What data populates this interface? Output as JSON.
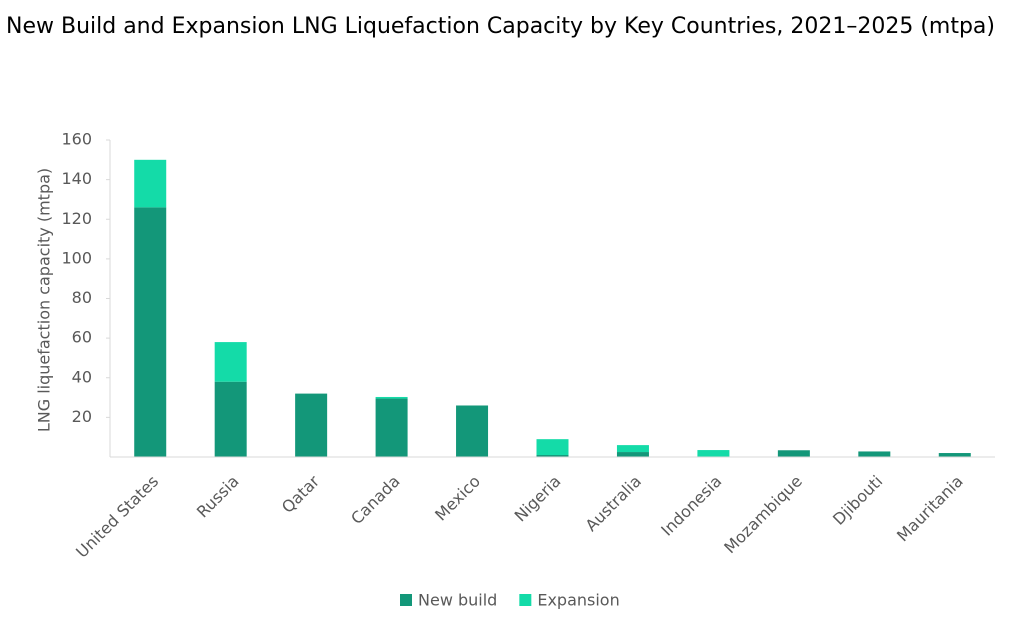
{
  "chart_data": {
    "type": "stacked_bar",
    "title": "New Build and Expansion LNG Liquefaction Capacity by Key Countries, 2021–2025 (mtpa)",
    "y_label": "LNG liquefaction capacity (mtpa)",
    "categories": [
      "United States",
      "Russia",
      "Qatar",
      "Canada",
      "Mexico",
      "Nigeria",
      "Australia",
      "Indonesia",
      "Mozambique",
      "Djibouti",
      "Mauritania"
    ],
    "series": [
      {
        "name": "New build",
        "color": "#139779",
        "values": [
          126,
          38,
          32,
          29.5,
          26,
          1,
          2.5,
          0,
          3.4,
          2.8,
          2
        ]
      },
      {
        "name": "Expansion",
        "color": "#14dba8",
        "values": [
          24,
          20,
          0,
          0.8,
          0,
          8,
          3.5,
          3.5,
          0,
          0,
          0
        ]
      }
    ],
    "ylim": [
      0,
      160
    ],
    "yticks": [
      20,
      40,
      60,
      80,
      100,
      120,
      140,
      160
    ],
    "legend": "bottom"
  }
}
